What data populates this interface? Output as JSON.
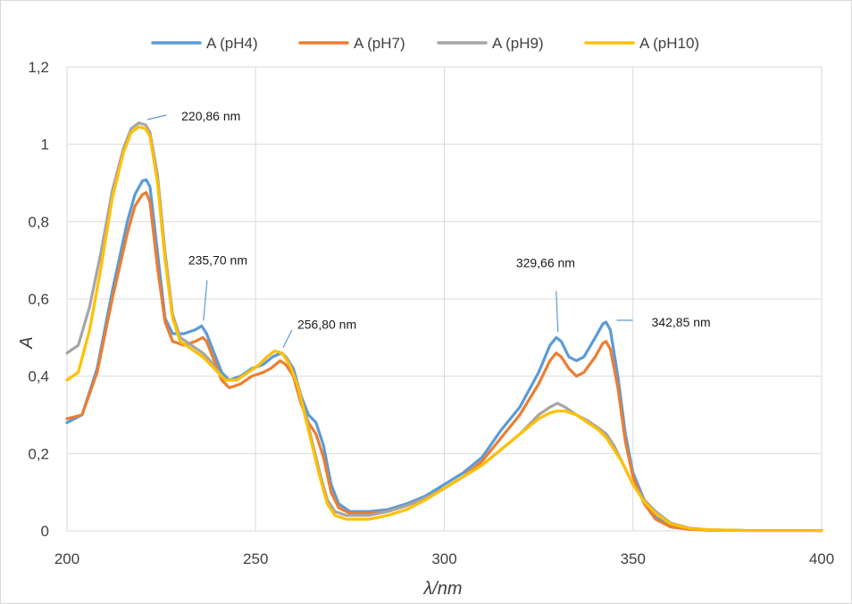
{
  "chart_data": {
    "type": "line",
    "xlabel": "λ/nm",
    "ylabel": "A",
    "xlim": [
      200,
      400
    ],
    "ylim": [
      0,
      1.2
    ],
    "x_ticks": [
      {
        "v": 200,
        "label": "200"
      },
      {
        "v": 250,
        "label": "250"
      },
      {
        "v": 300,
        "label": "300"
      },
      {
        "v": 350,
        "label": "350"
      },
      {
        "v": 400,
        "label": "400"
      }
    ],
    "y_ticks": [
      {
        "v": 0,
        "label": "0"
      },
      {
        "v": 0.2,
        "label": "0,2"
      },
      {
        "v": 0.4,
        "label": "0,4"
      },
      {
        "v": 0.6,
        "label": "0,6"
      },
      {
        "v": 0.8,
        "label": "0,8"
      },
      {
        "v": 1.0,
        "label": "1"
      },
      {
        "v": 1.2,
        "label": "1,2"
      }
    ],
    "grid": true,
    "legend_position": "top",
    "series": [
      {
        "name": "A (pH4)",
        "color": "#5b9bd5",
        "points": [
          [
            200,
            0.28
          ],
          [
            204,
            0.3
          ],
          [
            208,
            0.42
          ],
          [
            212,
            0.62
          ],
          [
            216,
            0.8
          ],
          [
            218,
            0.87
          ],
          [
            220,
            0.905
          ],
          [
            221,
            0.908
          ],
          [
            222,
            0.89
          ],
          [
            224,
            0.72
          ],
          [
            226,
            0.55
          ],
          [
            228,
            0.51
          ],
          [
            231,
            0.51
          ],
          [
            234,
            0.52
          ],
          [
            235.7,
            0.53
          ],
          [
            237,
            0.51
          ],
          [
            239,
            0.46
          ],
          [
            241,
            0.41
          ],
          [
            243,
            0.39
          ],
          [
            246,
            0.4
          ],
          [
            249,
            0.42
          ],
          [
            252,
            0.43
          ],
          [
            254.5,
            0.45
          ],
          [
            256.8,
            0.46
          ],
          [
            258,
            0.45
          ],
          [
            260,
            0.42
          ],
          [
            262,
            0.35
          ],
          [
            264,
            0.3
          ],
          [
            266,
            0.28
          ],
          [
            268,
            0.22
          ],
          [
            270,
            0.12
          ],
          [
            272,
            0.07
          ],
          [
            275,
            0.05
          ],
          [
            280,
            0.05
          ],
          [
            285,
            0.055
          ],
          [
            290,
            0.07
          ],
          [
            295,
            0.09
          ],
          [
            300,
            0.12
          ],
          [
            305,
            0.15
          ],
          [
            310,
            0.19
          ],
          [
            315,
            0.26
          ],
          [
            320,
            0.32
          ],
          [
            325,
            0.41
          ],
          [
            328,
            0.48
          ],
          [
            329.66,
            0.5
          ],
          [
            331,
            0.49
          ],
          [
            333,
            0.45
          ],
          [
            335,
            0.44
          ],
          [
            337,
            0.45
          ],
          [
            340,
            0.5
          ],
          [
            342,
            0.535
          ],
          [
            342.85,
            0.54
          ],
          [
            344,
            0.52
          ],
          [
            346,
            0.4
          ],
          [
            348,
            0.25
          ],
          [
            350,
            0.15
          ],
          [
            353,
            0.08
          ],
          [
            356,
            0.035
          ],
          [
            360,
            0.012
          ],
          [
            365,
            0.004
          ],
          [
            370,
            0.002
          ],
          [
            380,
            0.001
          ],
          [
            390,
            0.001
          ],
          [
            400,
            0.001
          ]
        ]
      },
      {
        "name": "A (pH7)",
        "color": "#ed7d31",
        "points": [
          [
            200,
            0.29
          ],
          [
            204,
            0.3
          ],
          [
            208,
            0.41
          ],
          [
            212,
            0.6
          ],
          [
            216,
            0.77
          ],
          [
            218,
            0.84
          ],
          [
            220,
            0.87
          ],
          [
            221,
            0.875
          ],
          [
            222,
            0.85
          ],
          [
            224,
            0.68
          ],
          [
            226,
            0.54
          ],
          [
            228,
            0.49
          ],
          [
            231,
            0.48
          ],
          [
            234,
            0.49
          ],
          [
            236,
            0.5
          ],
          [
            237,
            0.49
          ],
          [
            239,
            0.44
          ],
          [
            241,
            0.39
          ],
          [
            243,
            0.37
          ],
          [
            246,
            0.38
          ],
          [
            249,
            0.4
          ],
          [
            252,
            0.41
          ],
          [
            254,
            0.42
          ],
          [
            256.5,
            0.44
          ],
          [
            258,
            0.43
          ],
          [
            260,
            0.4
          ],
          [
            262,
            0.33
          ],
          [
            264,
            0.28
          ],
          [
            266,
            0.25
          ],
          [
            268,
            0.19
          ],
          [
            270,
            0.1
          ],
          [
            272,
            0.06
          ],
          [
            275,
            0.045
          ],
          [
            280,
            0.045
          ],
          [
            285,
            0.05
          ],
          [
            290,
            0.065
          ],
          [
            295,
            0.085
          ],
          [
            300,
            0.11
          ],
          [
            305,
            0.14
          ],
          [
            310,
            0.18
          ],
          [
            315,
            0.24
          ],
          [
            320,
            0.3
          ],
          [
            325,
            0.38
          ],
          [
            328,
            0.44
          ],
          [
            329.66,
            0.46
          ],
          [
            331,
            0.45
          ],
          [
            333,
            0.42
          ],
          [
            335,
            0.4
          ],
          [
            337,
            0.41
          ],
          [
            340,
            0.45
          ],
          [
            342,
            0.485
          ],
          [
            342.85,
            0.49
          ],
          [
            344,
            0.47
          ],
          [
            346,
            0.37
          ],
          [
            348,
            0.23
          ],
          [
            350,
            0.14
          ],
          [
            353,
            0.07
          ],
          [
            356,
            0.03
          ],
          [
            360,
            0.01
          ],
          [
            365,
            0.004
          ],
          [
            370,
            0.002
          ],
          [
            380,
            0.001
          ],
          [
            390,
            0.001
          ],
          [
            400,
            0.001
          ]
        ]
      },
      {
        "name": "A (pH9)",
        "color": "#a5a5a5",
        "points": [
          [
            200,
            0.46
          ],
          [
            203,
            0.48
          ],
          [
            206,
            0.58
          ],
          [
            209,
            0.72
          ],
          [
            212,
            0.88
          ],
          [
            215,
            0.99
          ],
          [
            217,
            1.04
          ],
          [
            219,
            1.055
          ],
          [
            220.86,
            1.05
          ],
          [
            222,
            1.03
          ],
          [
            224,
            0.92
          ],
          [
            226,
            0.72
          ],
          [
            228,
            0.56
          ],
          [
            230,
            0.5
          ],
          [
            233,
            0.48
          ],
          [
            236,
            0.46
          ],
          [
            238,
            0.44
          ],
          [
            240,
            0.41
          ],
          [
            242,
            0.39
          ],
          [
            245,
            0.39
          ],
          [
            248,
            0.41
          ],
          [
            251,
            0.43
          ],
          [
            253,
            0.45
          ],
          [
            255,
            0.465
          ],
          [
            257,
            0.46
          ],
          [
            259,
            0.43
          ],
          [
            261,
            0.38
          ],
          [
            263,
            0.31
          ],
          [
            265,
            0.23
          ],
          [
            267,
            0.15
          ],
          [
            269,
            0.08
          ],
          [
            271,
            0.05
          ],
          [
            274,
            0.04
          ],
          [
            280,
            0.04
          ],
          [
            285,
            0.05
          ],
          [
            290,
            0.065
          ],
          [
            295,
            0.085
          ],
          [
            300,
            0.11
          ],
          [
            305,
            0.14
          ],
          [
            310,
            0.17
          ],
          [
            315,
            0.21
          ],
          [
            320,
            0.25
          ],
          [
            325,
            0.3
          ],
          [
            328,
            0.32
          ],
          [
            330,
            0.33
          ],
          [
            332,
            0.32
          ],
          [
            335,
            0.3
          ],
          [
            338,
            0.285
          ],
          [
            341,
            0.265
          ],
          [
            343,
            0.25
          ],
          [
            345,
            0.22
          ],
          [
            347,
            0.18
          ],
          [
            350,
            0.12
          ],
          [
            353,
            0.08
          ],
          [
            356,
            0.05
          ],
          [
            360,
            0.02
          ],
          [
            365,
            0.007
          ],
          [
            370,
            0.003
          ],
          [
            380,
            0.001
          ],
          [
            390,
            0.001
          ],
          [
            400,
            0.001
          ]
        ]
      },
      {
        "name": "A (pH10)",
        "color": "#ffc000",
        "points": [
          [
            200,
            0.39
          ],
          [
            203,
            0.41
          ],
          [
            206,
            0.52
          ],
          [
            209,
            0.68
          ],
          [
            212,
            0.86
          ],
          [
            215,
            0.98
          ],
          [
            217,
            1.03
          ],
          [
            219,
            1.045
          ],
          [
            220.86,
            1.04
          ],
          [
            222,
            1.02
          ],
          [
            224,
            0.9
          ],
          [
            226,
            0.7
          ],
          [
            228,
            0.55
          ],
          [
            230,
            0.49
          ],
          [
            233,
            0.47
          ],
          [
            236,
            0.45
          ],
          [
            238,
            0.43
          ],
          [
            240,
            0.41
          ],
          [
            242,
            0.39
          ],
          [
            245,
            0.39
          ],
          [
            248,
            0.41
          ],
          [
            251,
            0.43
          ],
          [
            253,
            0.45
          ],
          [
            255,
            0.465
          ],
          [
            257,
            0.46
          ],
          [
            259,
            0.43
          ],
          [
            261,
            0.38
          ],
          [
            263,
            0.3
          ],
          [
            265,
            0.22
          ],
          [
            267,
            0.14
          ],
          [
            269,
            0.07
          ],
          [
            271,
            0.04
          ],
          [
            274,
            0.03
          ],
          [
            280,
            0.03
          ],
          [
            285,
            0.04
          ],
          [
            290,
            0.055
          ],
          [
            295,
            0.08
          ],
          [
            300,
            0.11
          ],
          [
            305,
            0.14
          ],
          [
            310,
            0.17
          ],
          [
            315,
            0.21
          ],
          [
            320,
            0.25
          ],
          [
            325,
            0.29
          ],
          [
            328,
            0.305
          ],
          [
            330,
            0.31
          ],
          [
            332,
            0.31
          ],
          [
            335,
            0.3
          ],
          [
            338,
            0.28
          ],
          [
            341,
            0.26
          ],
          [
            343,
            0.24
          ],
          [
            345,
            0.21
          ],
          [
            347,
            0.18
          ],
          [
            350,
            0.12
          ],
          [
            353,
            0.075
          ],
          [
            356,
            0.045
          ],
          [
            360,
            0.018
          ],
          [
            365,
            0.006
          ],
          [
            370,
            0.003
          ],
          [
            380,
            0.001
          ],
          [
            390,
            0.001
          ],
          [
            400,
            0.001
          ]
        ]
      }
    ],
    "annotations": [
      {
        "text": "220,86 nm",
        "x": 220.86,
        "y": 1.05,
        "line_color": "#5b9bd5"
      },
      {
        "text": "235,70 nm",
        "x": 235.7,
        "y": 0.53,
        "line_color": "#5b9bd5"
      },
      {
        "text": "256,80 nm",
        "x": 256.8,
        "y": 0.46,
        "line_color": "#5b9bd5"
      },
      {
        "text": "329,66 nm",
        "x": 329.66,
        "y": 0.5,
        "line_color": "#5b9bd5"
      },
      {
        "text": "342,85 nm",
        "x": 342.85,
        "y": 0.54,
        "line_color": "#5b9bd5"
      }
    ]
  }
}
